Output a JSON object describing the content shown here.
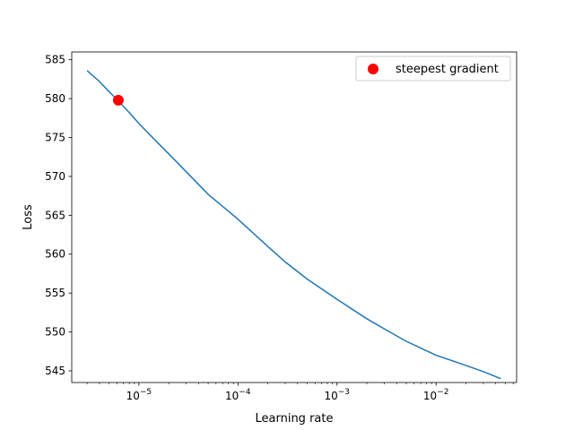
{
  "chart_data": {
    "type": "line",
    "title": "",
    "xlabel": "Learning rate",
    "ylabel": "Loss",
    "xscale": "log",
    "xlim": [
      2.1e-06,
      0.065
    ],
    "ylim": [
      543.5,
      586.0
    ],
    "grid": false,
    "legend_position": "top-right",
    "x_tick_labels": [
      {
        "value": 1e-05,
        "base": "10",
        "exp": "−5"
      },
      {
        "value": 0.0001,
        "base": "10",
        "exp": "−4"
      },
      {
        "value": 0.001,
        "base": "10",
        "exp": "−3"
      },
      {
        "value": 0.01,
        "base": "10",
        "exp": "−2"
      }
    ],
    "y_ticks": [
      545,
      550,
      555,
      560,
      565,
      570,
      575,
      580,
      585
    ],
    "series": [
      {
        "color": "#1f77b4",
        "x": [
          3e-06,
          4e-06,
          5e-06,
          6e-06,
          8e-06,
          1e-05,
          1.5e-05,
          2e-05,
          3e-05,
          5e-05,
          0.0001,
          0.0002,
          0.0003,
          0.0005,
          0.001,
          0.002,
          0.003,
          0.005,
          0.01,
          0.02,
          0.03,
          0.045
        ],
        "y": [
          583.6,
          582.2,
          580.9,
          579.9,
          578.2,
          576.8,
          574.5,
          572.9,
          570.6,
          567.7,
          564.5,
          561.0,
          559.0,
          556.8,
          554.2,
          551.7,
          550.4,
          548.8,
          547.0,
          545.7,
          544.9,
          544.0
        ]
      }
    ],
    "highlight_point": {
      "name": "steepest gradient",
      "x": 6.2e-06,
      "y": 579.8,
      "color": "#ff0000"
    }
  }
}
